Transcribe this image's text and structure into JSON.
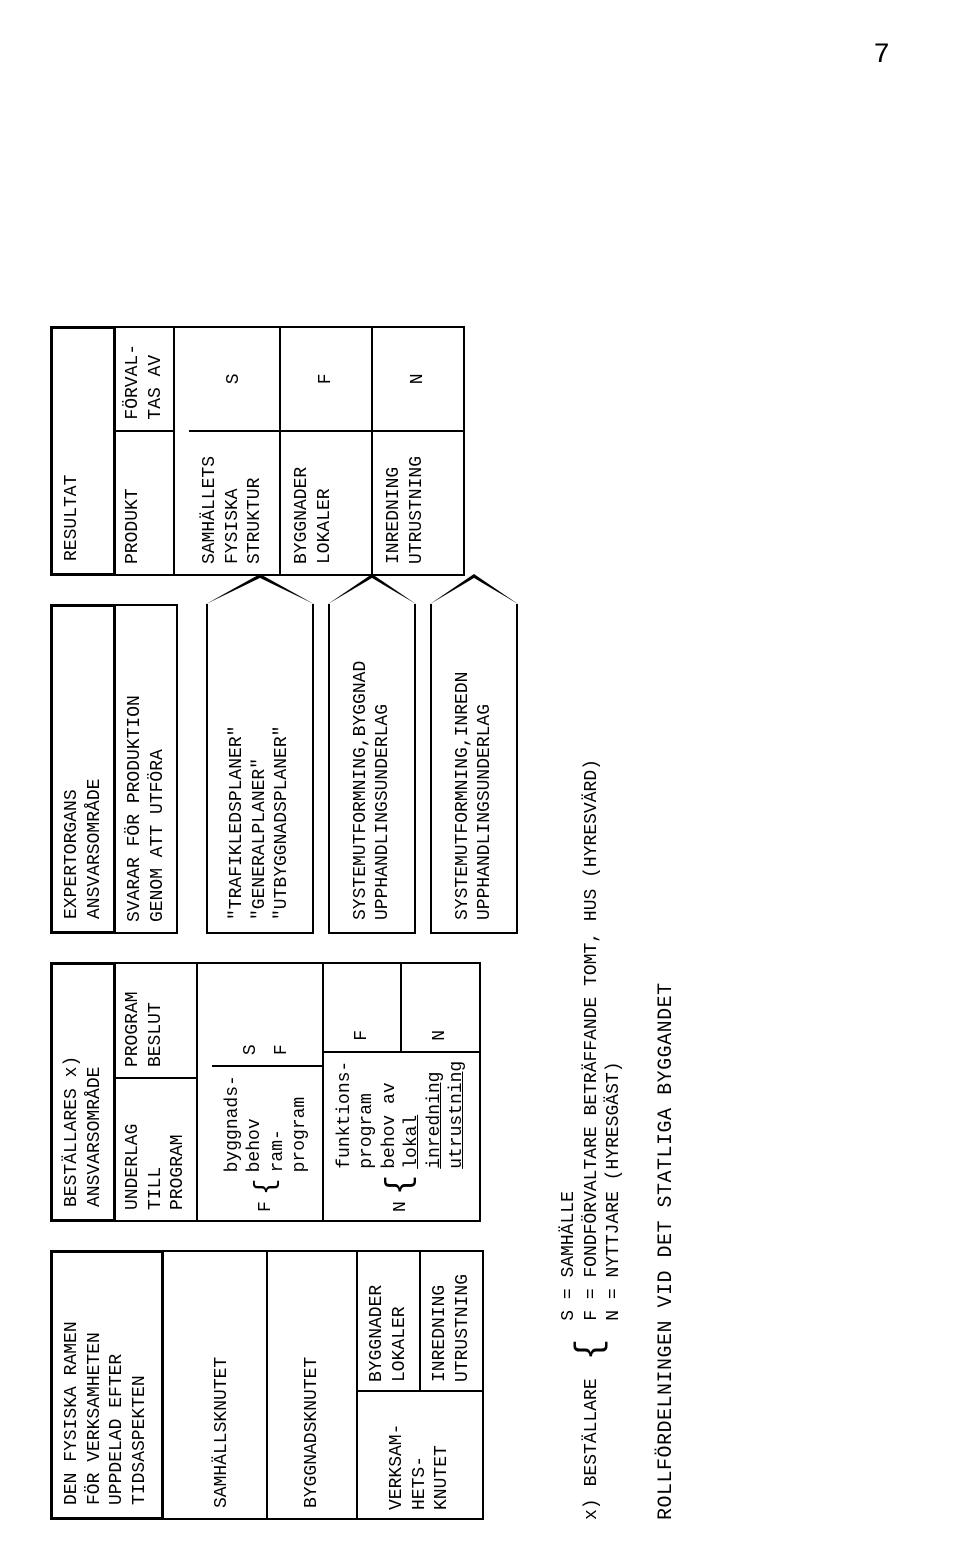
{
  "page_number": "7",
  "colors": {
    "ink": "#000000",
    "paper": "#ffffff"
  },
  "typography": {
    "family": "Courier New / typewriter monospace",
    "size_body_pt": 14,
    "size_pagenum_pt": 22
  },
  "column1": {
    "header": "DEN FYSISKA RAMEN\nFÖR VERKSAMHETEN\nUPPDELAD EFTER\nTIDSASPEKTEN",
    "rows": [
      {
        "left": "SAMHÄLLSKNUTET",
        "right": ""
      },
      {
        "left": "BYGGNADSKNUTET",
        "right": ""
      },
      {
        "left": "VERKSAM-\nHETS-\nKNUTET",
        "right_top": "BYGGNADER\nLOKALER",
        "right_bottom": "INREDNING\nUTRUSTNING"
      }
    ]
  },
  "column2": {
    "header": "BESTÄLLARES x)\nANSVARSOMRÅDE",
    "sub_left": "UNDERLAG\nTILL PROGRAM",
    "sub_right": "PROGRAM\nBESLUT",
    "block_top": {
      "prefix": "F",
      "lines": [
        "byggnads-",
        "behov",
        "ram-",
        "program"
      ],
      "codes": [
        "S",
        "F"
      ]
    },
    "block_bottom": {
      "prefix": "N",
      "lines": [
        "funktions-",
        "program",
        "behov av",
        "lokal",
        "inredning",
        "utrustning"
      ],
      "underlined_indexes": [
        3,
        4,
        5
      ],
      "codes_top": "F",
      "codes_bottom": "N"
    }
  },
  "column3": {
    "header": "EXPERTORGANS\nANSVARSOMRÅDE",
    "sub": "SVARAR FÖR PRODUKTION\nGENOM ATT UTFÖRA",
    "arrows": [
      "\"TRAFIKLEDSPLANER\"\n\"GENERALPLANER\"\n\"UTBYGGNADSPLANER\"",
      "SYSTEMUTFORMNING,BYGGNAD\nUPPHANDLINGSUNDERLAG",
      "SYSTEMUTFORMNING,INREDN\nUPPHANDLINGSUNDERLAG"
    ]
  },
  "column4": {
    "header": "RESULTAT",
    "sub_left": "PRODUKT",
    "sub_right": "FÖRVAL-\nTAS AV",
    "rows": [
      {
        "left": "SAMHÄLLETS\nFYSISKA\nSTRUKTUR",
        "right": "S"
      },
      {
        "left": "BYGGNADER\nLOKALER",
        "right": "F"
      },
      {
        "left": "INREDNING\nUTRUSTNING",
        "right": "N"
      }
    ]
  },
  "legend": {
    "lead_symbol": "x)",
    "lead_label": "BESTÄLLARE",
    "defs": [
      "S = SAMHÄLLE",
      "F = FONDFÖRVALTARE BETRÄFFANDE TOMT, HUS (HYRESVÄRD)",
      "N = NYTTJARE (HYRESGÄST)"
    ]
  },
  "bottom_title": "ROLLFÖRDELNINGEN VID DET STATLIGA BYGGANDET"
}
